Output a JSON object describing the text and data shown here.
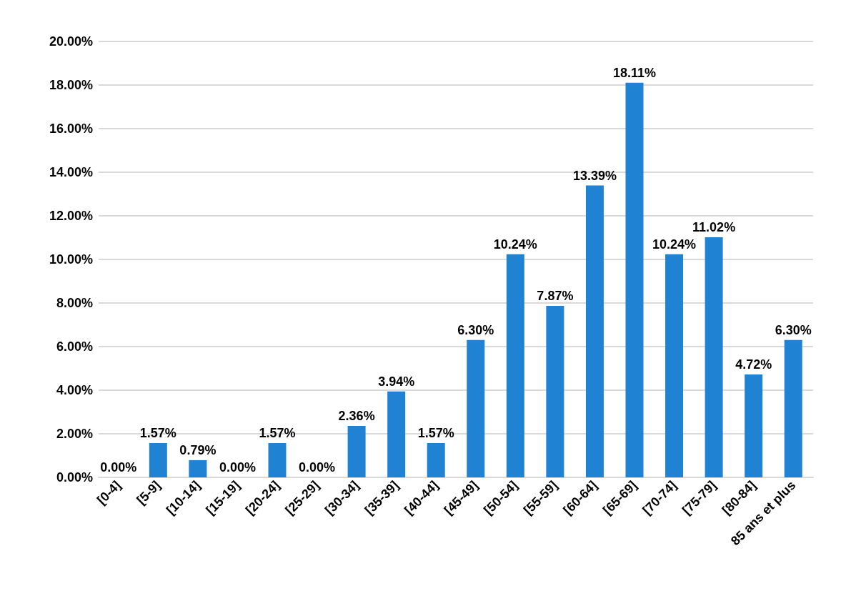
{
  "chart_data": {
    "type": "bar",
    "categories": [
      "[0-4]",
      "[5-9]",
      "[10-14]",
      "[15-19]",
      "[20-24]",
      "[25-29]",
      "[30-34]",
      "[35-39]",
      "[40-44]",
      "[45-49]",
      "[50-54]",
      "[55-59]",
      "[60-64]",
      "[65-69]",
      "[70-74]",
      "[75-79]",
      "[80-84]",
      "85 ans et plus"
    ],
    "values": [
      0,
      1.57,
      0.79,
      0,
      1.57,
      0,
      2.36,
      3.94,
      1.57,
      6.3,
      10.24,
      7.87,
      13.39,
      18.11,
      10.24,
      11.02,
      4.72,
      6.3
    ],
    "value_labels": [
      "0.00%",
      "1.57%",
      "0.79%",
      "0.00%",
      "1.57%",
      "0.00%",
      "2.36%",
      "3.94%",
      "1.57%",
      "6.30%",
      "10.24%",
      "7.87%",
      "13.39%",
      "18.11%",
      "10.24%",
      "11.02%",
      "4.72%",
      "6.30%"
    ],
    "color": "#1f82d2",
    "ylim": [
      0,
      20
    ],
    "yticks": [
      {
        "value": 0,
        "label": "0.00%"
      },
      {
        "value": 2,
        "label": "2.00%"
      },
      {
        "value": 4,
        "label": "4.00%"
      },
      {
        "value": 6,
        "label": "6.00%"
      },
      {
        "value": 8,
        "label": "8.00%"
      },
      {
        "value": 10,
        "label": "10.00%"
      },
      {
        "value": 12,
        "label": "12.00%"
      },
      {
        "value": 14,
        "label": "14.00%"
      },
      {
        "value": 16,
        "label": "16.00%"
      },
      {
        "value": 18,
        "label": "18.00%"
      },
      {
        "value": 20,
        "label": "20.00%"
      }
    ],
    "grid": "y"
  }
}
